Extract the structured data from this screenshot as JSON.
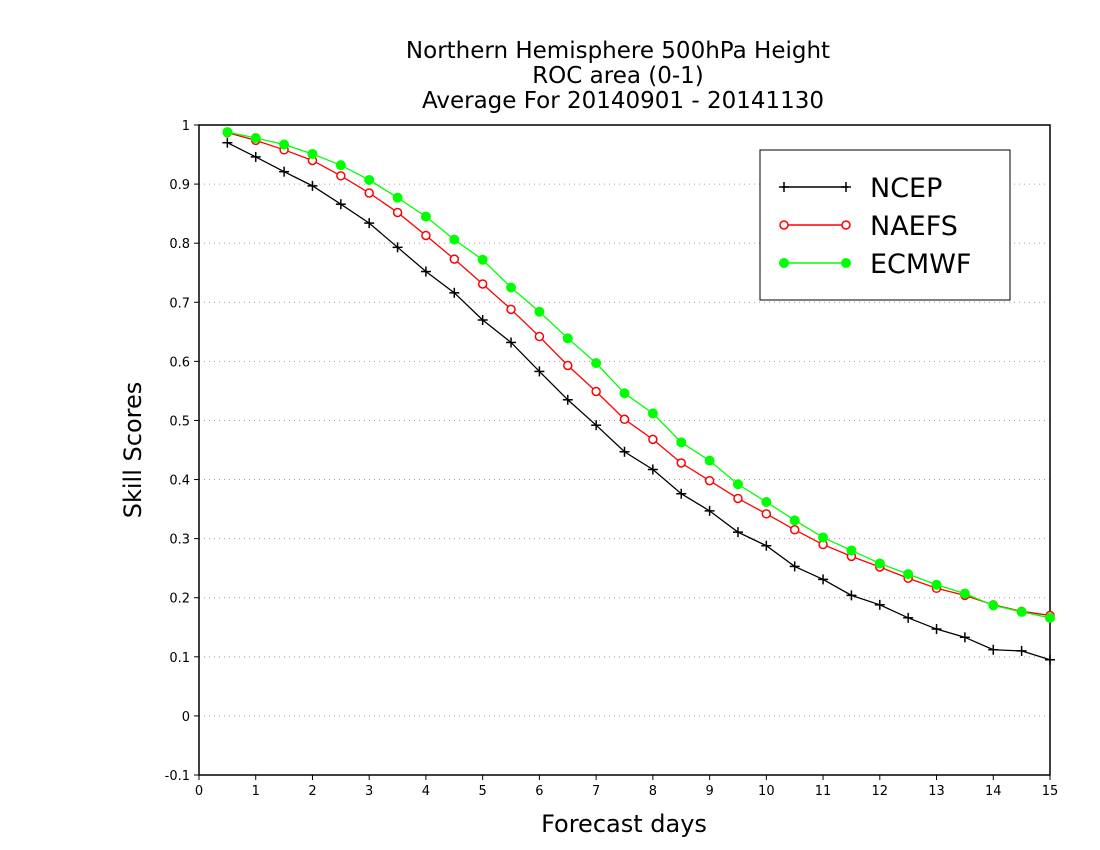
{
  "chart_data": {
    "type": "line",
    "title_lines": [
      "Northern Hemisphere 500hPa Height",
      "ROC area (0-1)",
      "Average For 20140901 - 20141130"
    ],
    "xlabel": "Forecast days",
    "ylabel": "Skill Scores",
    "xlim": [
      0,
      15
    ],
    "ylim": [
      -0.1,
      1
    ],
    "x_ticks": [
      "0",
      "1",
      "2",
      "3",
      "4",
      "5",
      "6",
      "7",
      "8",
      "9",
      "10",
      "11",
      "12",
      "13",
      "14",
      "15"
    ],
    "y_ticks": [
      "-0.1",
      "0",
      "0.1",
      "0.2",
      "0.3",
      "0.4",
      "0.5",
      "0.6",
      "0.7",
      "0.8",
      "0.9",
      "1"
    ],
    "grid": "horizontal dotted",
    "legend_position": "top-right",
    "x": [
      0.5,
      1,
      1.5,
      2,
      2.5,
      3,
      3.5,
      4,
      4.5,
      5,
      5.5,
      6,
      6.5,
      7,
      7.5,
      8,
      8.5,
      9,
      9.5,
      10,
      10.5,
      11,
      11.5,
      12,
      12.5,
      13,
      13.5,
      14,
      14.5,
      15
    ],
    "series": [
      {
        "name": "NCEP",
        "color": "#000000",
        "marker": "plus",
        "values": [
          0.97,
          0.946,
          0.921,
          0.897,
          0.866,
          0.834,
          0.793,
          0.752,
          0.716,
          0.67,
          0.632,
          0.583,
          0.535,
          0.492,
          0.447,
          0.417,
          0.376,
          0.347,
          0.311,
          0.288,
          0.253,
          0.231,
          0.204,
          0.188,
          0.166,
          0.147,
          0.133,
          0.112,
          0.11,
          0.095
        ]
      },
      {
        "name": "NAEFS",
        "color": "#ff0000",
        "marker": "open-circle",
        "values": [
          0.987,
          0.974,
          0.958,
          0.94,
          0.914,
          0.885,
          0.852,
          0.813,
          0.773,
          0.731,
          0.688,
          0.642,
          0.593,
          0.549,
          0.502,
          0.468,
          0.428,
          0.398,
          0.368,
          0.342,
          0.315,
          0.29,
          0.27,
          0.252,
          0.233,
          0.216,
          0.204,
          0.188,
          0.177,
          0.17
        ]
      },
      {
        "name": "ECMWF",
        "color": "#00ff00",
        "marker": "filled-circle",
        "values": [
          0.988,
          0.978,
          0.967,
          0.951,
          0.932,
          0.907,
          0.877,
          0.845,
          0.806,
          0.772,
          0.725,
          0.684,
          0.639,
          0.597,
          0.546,
          0.512,
          0.463,
          0.432,
          0.392,
          0.362,
          0.331,
          0.302,
          0.28,
          0.258,
          0.24,
          0.222,
          0.207,
          0.187,
          0.176,
          0.166
        ]
      }
    ]
  }
}
